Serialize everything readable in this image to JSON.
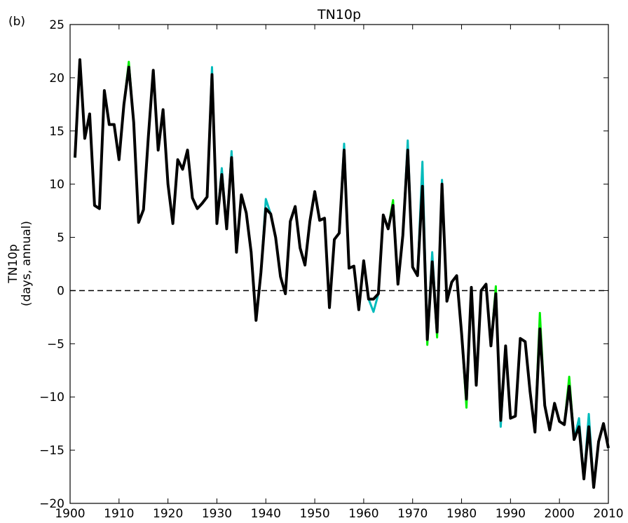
{
  "chart_data": {
    "type": "line",
    "panel_label": "(b)",
    "title": "TN10p",
    "ylabel": [
      "TN10p",
      "(days, annual)"
    ],
    "x": [
      1901,
      1902,
      1903,
      1904,
      1905,
      1906,
      1907,
      1908,
      1909,
      1910,
      1911,
      1912,
      1913,
      1914,
      1915,
      1916,
      1917,
      1918,
      1919,
      1920,
      1921,
      1922,
      1923,
      1924,
      1925,
      1926,
      1927,
      1928,
      1929,
      1930,
      1931,
      1932,
      1933,
      1934,
      1935,
      1936,
      1937,
      1938,
      1939,
      1940,
      1941,
      1942,
      1943,
      1944,
      1945,
      1946,
      1947,
      1948,
      1949,
      1950,
      1951,
      1952,
      1953,
      1954,
      1955,
      1956,
      1957,
      1958,
      1959,
      1960,
      1961,
      1962,
      1963,
      1964,
      1965,
      1966,
      1967,
      1968,
      1969,
      1970,
      1971,
      1972,
      1973,
      1974,
      1975,
      1976,
      1977,
      1978,
      1979,
      1980,
      1981,
      1982,
      1983,
      1984,
      1985,
      1986,
      1987,
      1988,
      1989,
      1990,
      1991,
      1992,
      1993,
      1994,
      1995,
      1996,
      1997,
      1998,
      1999,
      2000,
      2001,
      2002,
      2003,
      2004,
      2005,
      2006,
      2007,
      2008,
      2009,
      2010
    ],
    "series": [
      {
        "color": "#00ee00",
        "values": [
          12.5,
          21.7,
          14.3,
          16.6,
          8.0,
          7.7,
          18.8,
          15.6,
          15.6,
          12.3,
          17.5,
          21.5,
          15.8,
          6.4,
          7.6,
          14.5,
          20.7,
          13.2,
          17.0,
          10.0,
          6.3,
          12.3,
          11.4,
          13.2,
          8.7,
          7.7,
          8.2,
          8.8,
          20.3,
          6.3,
          10.9,
          5.8,
          12.5,
          3.6,
          9.0,
          7.3,
          3.6,
          -2.8,
          1.7,
          7.7,
          7.2,
          5.0,
          1.3,
          -0.3,
          6.5,
          7.9,
          4.0,
          2.4,
          6.5,
          9.3,
          6.6,
          6.8,
          -1.6,
          4.8,
          5.4,
          13.2,
          2.1,
          2.3,
          -1.8,
          2.8,
          -0.8,
          -0.8,
          -0.3,
          7.1,
          5.8,
          8.5,
          0.6,
          5.2,
          13.2,
          2.2,
          1.4,
          9.8,
          -5.1,
          2.7,
          -4.4,
          10.0,
          -1.0,
          0.8,
          1.4,
          -4.0,
          -11.0,
          0.3,
          -8.9,
          0.0,
          0.6,
          -5.2,
          0.4,
          -12.2,
          -5.2,
          -12.0,
          -11.8,
          -4.5,
          -4.8,
          -9.5,
          -13.3,
          -2.1,
          -10.8,
          -13.1,
          -10.6,
          -12.3,
          -12.6,
          -8.1,
          -14.0,
          -12.8,
          -17.7,
          -12.8,
          -18.5,
          -14.2,
          -12.5,
          -14.8
        ]
      },
      {
        "color": "#00bbbb",
        "values": [
          12.5,
          21.7,
          14.3,
          16.6,
          8.0,
          7.7,
          18.8,
          15.6,
          15.6,
          12.3,
          17.5,
          21.0,
          15.8,
          6.4,
          7.6,
          14.5,
          20.7,
          13.2,
          17.0,
          10.0,
          6.3,
          12.3,
          11.4,
          13.2,
          8.7,
          7.7,
          8.2,
          8.8,
          21.0,
          6.3,
          11.5,
          5.8,
          13.1,
          3.6,
          9.0,
          7.3,
          3.6,
          -2.8,
          1.7,
          8.6,
          7.2,
          5.0,
          1.3,
          -0.3,
          6.5,
          7.9,
          4.0,
          2.4,
          6.5,
          9.3,
          6.6,
          6.8,
          -1.6,
          4.8,
          5.4,
          13.8,
          2.1,
          2.3,
          -1.8,
          2.8,
          -0.8,
          -2.0,
          -0.3,
          7.1,
          5.8,
          8.0,
          0.6,
          5.2,
          14.1,
          2.2,
          1.4,
          12.1,
          -4.6,
          3.6,
          -3.9,
          10.4,
          -1.0,
          0.8,
          1.4,
          -4.0,
          -10.2,
          0.3,
          -8.9,
          0.0,
          0.6,
          -5.2,
          -0.3,
          -12.8,
          -5.2,
          -12.0,
          -11.8,
          -4.5,
          -4.8,
          -9.5,
          -13.3,
          -3.6,
          -10.8,
          -13.1,
          -10.6,
          -12.3,
          -12.6,
          -9.0,
          -14.0,
          -12.0,
          -17.7,
          -11.6,
          -18.5,
          -14.2,
          -12.5,
          -14.8
        ]
      },
      {
        "color": "#000000",
        "values": [
          12.5,
          21.7,
          14.3,
          16.6,
          8.0,
          7.7,
          18.8,
          15.6,
          15.6,
          12.3,
          17.5,
          21.0,
          15.8,
          6.4,
          7.6,
          14.5,
          20.7,
          13.2,
          17.0,
          10.0,
          6.3,
          12.3,
          11.4,
          13.2,
          8.7,
          7.7,
          8.2,
          8.8,
          20.3,
          6.3,
          10.9,
          5.8,
          12.5,
          3.6,
          9.0,
          7.3,
          3.6,
          -2.8,
          1.7,
          7.7,
          7.2,
          5.0,
          1.3,
          -0.3,
          6.5,
          7.9,
          4.0,
          2.4,
          6.5,
          9.3,
          6.6,
          6.8,
          -1.6,
          4.8,
          5.4,
          13.2,
          2.1,
          2.3,
          -1.8,
          2.8,
          -0.8,
          -0.8,
          -0.3,
          7.1,
          5.8,
          8.0,
          0.6,
          5.2,
          13.2,
          2.2,
          1.4,
          9.8,
          -4.6,
          2.7,
          -3.9,
          10.0,
          -1.0,
          0.8,
          1.4,
          -4.0,
          -10.2,
          0.3,
          -8.9,
          0.0,
          0.6,
          -5.2,
          -0.3,
          -12.2,
          -5.2,
          -12.0,
          -11.8,
          -4.5,
          -4.8,
          -9.5,
          -13.3,
          -3.6,
          -10.8,
          -13.1,
          -10.6,
          -12.3,
          -12.6,
          -9.0,
          -14.0,
          -12.8,
          -17.7,
          -12.8,
          -18.5,
          -14.2,
          -12.5,
          -14.8
        ]
      }
    ],
    "reference_line": 0,
    "xlim": [
      1900,
      2010
    ],
    "xticks": [
      1900,
      1910,
      1920,
      1930,
      1940,
      1950,
      1960,
      1970,
      1980,
      1990,
      2000,
      2010
    ],
    "ylim": [
      -20,
      25
    ],
    "yticks": [
      {
        "value": -20,
        "label": "−20"
      },
      {
        "value": -15,
        "label": "−15"
      },
      {
        "value": -10,
        "label": "−10"
      },
      {
        "value": -5,
        "label": "−5"
      },
      0,
      5,
      10,
      15,
      20,
      25
    ]
  }
}
